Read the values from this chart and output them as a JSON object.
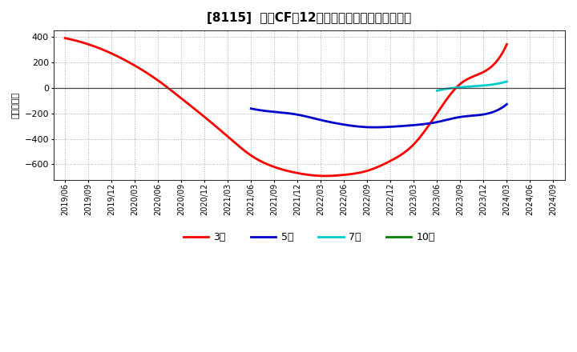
{
  "title": "[8115]  営業CFだ12か月移動合計の平均値の推移",
  "ylabel": "（百万円）",
  "background_color": "#ffffff",
  "plot_background_color": "#ffffff",
  "ylim": [
    -720,
    450
  ],
  "yticks": [
    -600,
    -400,
    -200,
    0,
    200,
    400
  ],
  "series": {
    "3year": {
      "color": "#ff0000",
      "label": "3年",
      "data": [
        [
          "2019/06",
          390
        ],
        [
          "2019/09",
          342
        ],
        [
          "2019/12",
          270
        ],
        [
          "2020/03",
          175
        ],
        [
          "2020/06",
          58
        ],
        [
          "2020/09",
          -82
        ],
        [
          "2020/12",
          -228
        ],
        [
          "2021/03",
          -382
        ],
        [
          "2021/06",
          -530
        ],
        [
          "2021/09",
          -620
        ],
        [
          "2021/12",
          -668
        ],
        [
          "2022/03",
          -690
        ],
        [
          "2022/06",
          -682
        ],
        [
          "2022/09",
          -650
        ],
        [
          "2022/12",
          -572
        ],
        [
          "2023/03",
          -442
        ],
        [
          "2023/06",
          -198
        ],
        [
          "2023/09",
          32
        ],
        [
          "2023/12",
          125
        ],
        [
          "2024/03",
          342
        ]
      ]
    },
    "5year": {
      "color": "#0000cc",
      "label": "5年",
      "data": [
        [
          "2021/06",
          -162
        ],
        [
          "2021/09",
          -188
        ],
        [
          "2021/12",
          -210
        ],
        [
          "2022/03",
          -252
        ],
        [
          "2022/06",
          -288
        ],
        [
          "2022/09",
          -308
        ],
        [
          "2022/12",
          -305
        ],
        [
          "2023/03",
          -292
        ],
        [
          "2023/06",
          -268
        ],
        [
          "2023/09",
          -228
        ],
        [
          "2023/12",
          -208
        ],
        [
          "2024/03",
          -128
        ]
      ]
    },
    "7year": {
      "color": "#00cccc",
      "label": "7年",
      "data": [
        [
          "2023/06",
          -22
        ],
        [
          "2023/09",
          5
        ],
        [
          "2023/12",
          18
        ],
        [
          "2024/03",
          50
        ]
      ]
    },
    "10year": {
      "color": "#008000",
      "label": "10年",
      "data": []
    }
  },
  "x_labels": [
    "2019/06",
    "2019/09",
    "2019/12",
    "2020/03",
    "2020/06",
    "2020/09",
    "2020/12",
    "2021/03",
    "2021/06",
    "2021/09",
    "2021/12",
    "2022/03",
    "2022/06",
    "2022/09",
    "2022/12",
    "2023/03",
    "2023/06",
    "2023/09",
    "2023/12",
    "2024/03",
    "2024/06",
    "2024/09"
  ]
}
